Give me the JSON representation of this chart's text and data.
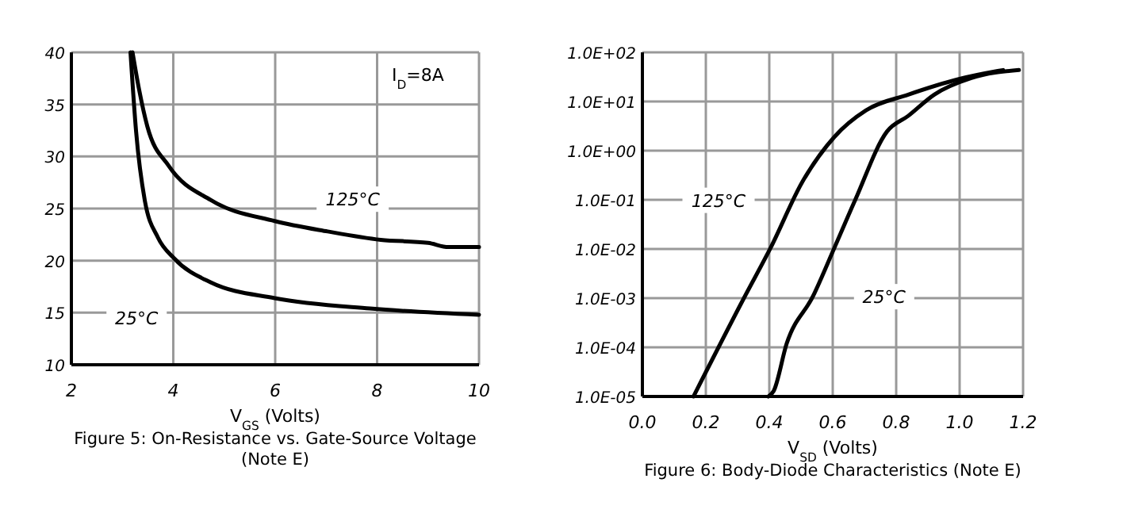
{
  "chart_data": [
    {
      "type": "line",
      "title": "Figure 5: On-Resistance vs. Gate-Source Voltage (Note E)",
      "xlabel": "V$_{GS}$ (Volts)",
      "xlim": [
        2,
        10
      ],
      "ylim": [
        10,
        40
      ],
      "xticks": [
        2,
        4,
        6,
        8,
        10
      ],
      "yticks": [
        10,
        15,
        20,
        25,
        30,
        35,
        40
      ],
      "grid": true,
      "annotations": [
        "I$_{D}$=8A"
      ],
      "series": [
        {
          "name": "125°C",
          "color": "#000000",
          "x": [
            3.2,
            3.33,
            3.49,
            3.91,
            4.74,
            5.99,
            7.03,
            8.07,
            9.0,
            9.4,
            10
          ],
          "values": [
            40,
            36.4,
            32.9,
            29.1,
            25.8,
            23.8,
            22.8,
            22.0,
            21.7,
            21.3,
            21.3
          ]
        },
        {
          "name": "25°C",
          "color": "#000000",
          "x": [
            3.16,
            3.27,
            3.44,
            3.7,
            4.02,
            4.74,
            5.99,
            7.86,
            10
          ],
          "values": [
            40,
            32.4,
            25.8,
            22.2,
            20.2,
            17.9,
            16.4,
            15.4,
            14.8
          ]
        }
      ]
    },
    {
      "type": "line",
      "title": "Figure 6: Body-Diode Characteristics (Note E)",
      "xlabel": "V$_{SD}$ (Volts)",
      "log": "y",
      "xlim": [
        0,
        1.2
      ],
      "ylim": [
        1e-05,
        100
      ],
      "xticks": [
        {
          "value": 0,
          "label": "0.0"
        },
        {
          "value": 0.2,
          "label": "0.2"
        },
        {
          "value": 0.4,
          "label": "0.4"
        },
        {
          "value": 0.6,
          "label": "0.6"
        },
        {
          "value": 0.8,
          "label": "0.8"
        },
        {
          "value": 1,
          "label": "1.0"
        },
        {
          "value": 1.2,
          "label": "1.2"
        }
      ],
      "yticks": [
        {
          "value": 1e-05,
          "label": "1.0E-05"
        },
        {
          "value": 0.0001,
          "label": "1.0E-04"
        },
        {
          "value": 0.001,
          "label": "1.0E-03"
        },
        {
          "value": 0.01,
          "label": "1.0E-02"
        },
        {
          "value": 0.1,
          "label": "1.0E-01"
        },
        {
          "value": 1,
          "label": "1.0E+00"
        },
        {
          "value": 10,
          "label": "1.0E+01"
        },
        {
          "value": 100,
          "label": "1.0E+02"
        }
      ],
      "grid": true,
      "series": [
        {
          "name": "125°C",
          "color": "#000000",
          "x": [
            0.161,
            0.32,
            0.404,
            0.504,
            0.605,
            0.705,
            0.838,
            1.0,
            1.12,
            1.137
          ],
          "values": [
            1e-05,
            0.001,
            0.0105,
            0.23,
            1.9,
            6.6,
            13.8,
            28.8,
            41.7,
            43.6
          ]
        },
        {
          "name": "25°C",
          "color": "#000000",
          "x": [
            0.397,
            0.414,
            0.455,
            0.538,
            0.605,
            0.671,
            0.771,
            0.838,
            0.92,
            1.037,
            1.187
          ],
          "values": [
            1e-05,
            1.3e-05,
            0.00012,
            0.0011,
            0.0105,
            0.1,
            2.45,
            5.1,
            13.8,
            30,
            43.6
          ]
        }
      ]
    }
  ]
}
